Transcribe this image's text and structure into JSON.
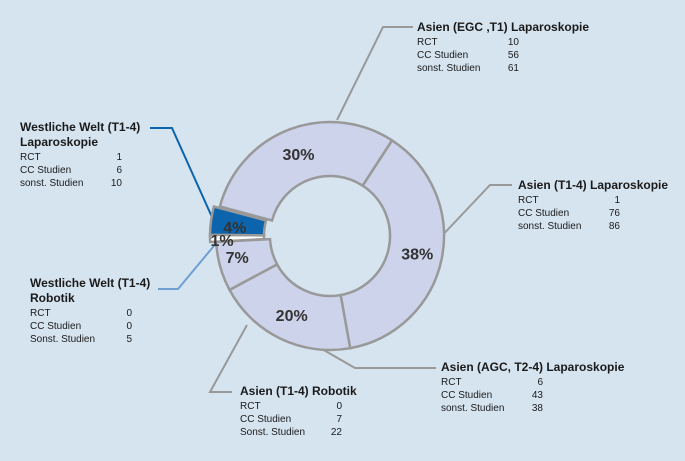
{
  "chart_data": {
    "type": "pie",
    "slices": [
      {
        "label": "30%",
        "value": 30,
        "fill": "#ccd3ea",
        "text_color": "#333333",
        "callout": 0
      },
      {
        "label": "38%",
        "value": 38,
        "fill": "#ccd3ea",
        "text_color": "#333333",
        "callout": 1
      },
      {
        "label": "20%",
        "value": 20,
        "fill": "#ccd3ea",
        "text_color": "#333333",
        "callout": 2
      },
      {
        "label": "7%",
        "value": 7,
        "fill": "#ccd3ea",
        "text_color": "#333333",
        "callout": 3
      },
      {
        "label": "1%",
        "value": 1,
        "fill": "#ffffff",
        "text_color": "#333333",
        "callout": 4
      },
      {
        "label": "4%",
        "value": 4,
        "fill": "#0b64ac",
        "text_color": "#333333",
        "callout": 5
      }
    ],
    "colors": {
      "ring_stroke": "#999999",
      "leader_gray": "#999999",
      "leader_blue": "#0b64ac",
      "leader_light_blue": "#6f9fd2"
    },
    "callouts": [
      {
        "title": [
          "Asien (EGC ,T1) Laparoskopie"
        ],
        "rows": [
          [
            "RCT",
            "10"
          ],
          [
            "CC Studien",
            "56"
          ],
          [
            "sonst. Studien",
            "61"
          ]
        ]
      },
      {
        "title": [
          "Asien (T1-4) Laparoskopie"
        ],
        "rows": [
          [
            "RCT",
            "1"
          ],
          [
            "CC Studien",
            "76"
          ],
          [
            "sonst. Studien",
            "86"
          ]
        ]
      },
      {
        "title": [
          "Asien (AGC, T2-4) Laparoskopie"
        ],
        "rows": [
          [
            "RCT",
            "6"
          ],
          [
            "CC Studien",
            "43"
          ],
          [
            "sonst. Studien",
            "38"
          ]
        ]
      },
      {
        "title": [
          "Asien (T1-4) Robotik"
        ],
        "rows": [
          [
            "RCT",
            "0"
          ],
          [
            "CC Studien",
            "7"
          ],
          [
            "Sonst. Studien",
            "22"
          ]
        ]
      },
      {
        "title": [
          "Westliche Welt (T1-4)",
          "Robotik"
        ],
        "rows": [
          [
            "RCT",
            "0"
          ],
          [
            "CC Studien",
            "0"
          ],
          [
            "Sonst. Studien",
            "5"
          ]
        ]
      },
      {
        "title": [
          "Westliche Welt (T1-4)",
          "Laparoskopie"
        ],
        "rows": [
          [
            "RCT",
            "1"
          ],
          [
            "CC Studien",
            "6"
          ],
          [
            "sonst. Studien",
            "10"
          ]
        ]
      }
    ]
  }
}
